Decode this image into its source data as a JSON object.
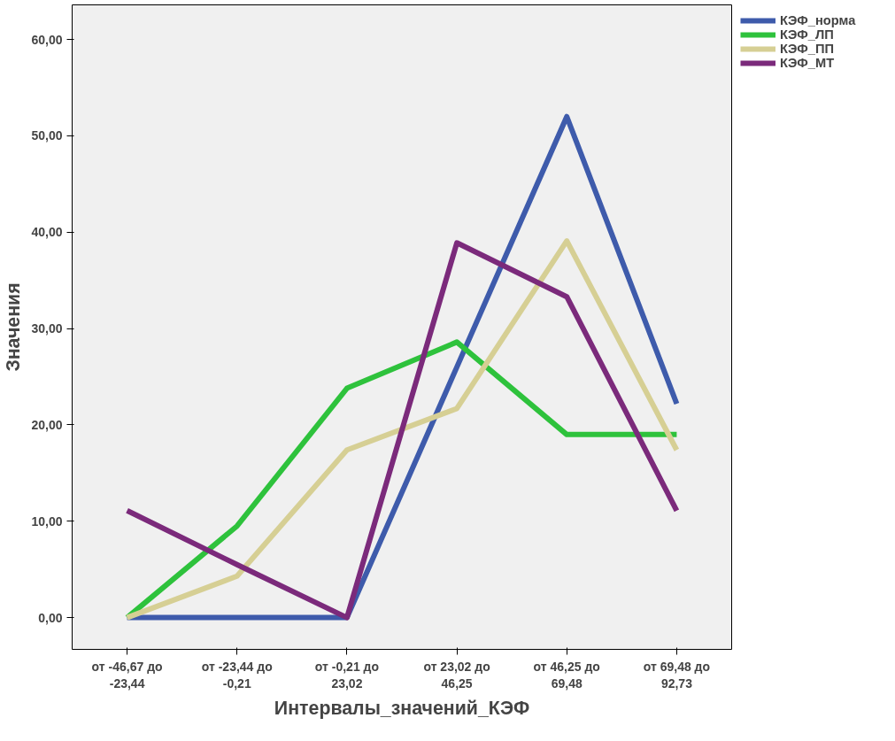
{
  "chart_data": {
    "type": "line",
    "xlabel": "Интервалы_значений_КЭФ",
    "ylabel": "Значения",
    "categories": [
      "от -46,67 до\n-23,44",
      "от -23,44 до\n-0,21",
      "от -0,21 до\n23,02",
      "от 23,02 до\n46,25",
      "от 46,25 до\n69,48",
      "от 69,48 до\n92,73"
    ],
    "ylim": [
      -3.3,
      63.6
    ],
    "yticks": [
      {
        "value": 0,
        "label": "0,00"
      },
      {
        "value": 10,
        "label": "10,00"
      },
      {
        "value": 20,
        "label": "20,00"
      },
      {
        "value": 30,
        "label": "30,00"
      },
      {
        "value": 40,
        "label": "40,00"
      },
      {
        "value": 50,
        "label": "50,00"
      },
      {
        "value": 60,
        "label": "60,00"
      }
    ],
    "grid": false,
    "legend": "top right",
    "marker": "none",
    "line_style": "solid",
    "series": [
      {
        "name": "КЭФ_норма",
        "color": "#3e5bab",
        "values": [
          0,
          0,
          0,
          26,
          52,
          22.2
        ]
      },
      {
        "name": "КЭФ_ЛП",
        "color": "#2ec23c",
        "values": [
          0,
          9.5,
          23.8,
          28.6,
          19,
          19
        ]
      },
      {
        "name": "КЭФ_ПП",
        "color": "#d6cf94",
        "values": [
          0,
          4.3,
          17.4,
          21.7,
          39.1,
          17.4
        ]
      },
      {
        "name": "КЭФ_МТ",
        "color": "#7b2a7b",
        "values": [
          11.1,
          5.5,
          0,
          38.9,
          33.3,
          11.1
        ]
      }
    ]
  }
}
